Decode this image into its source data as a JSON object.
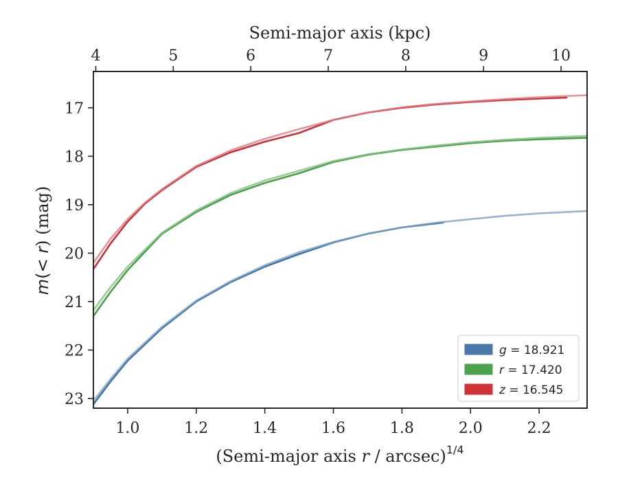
{
  "chart_data": {
    "type": "line",
    "title": "",
    "xlabel_prefix": "(Semi-major axis ",
    "xlabel_var": "r",
    "xlabel_suffix": " / arcsec)",
    "xlabel_power": "1/4",
    "ylabel_var": "m",
    "ylabel_mid": "(< ",
    "ylabel_var2": "r",
    "ylabel_suffix": ") (mag)",
    "top_xlabel": "Semi-major axis (kpc)",
    "xlim": [
      0.9,
      2.34
    ],
    "ylim": [
      23.2,
      16.25
    ],
    "y_inverted": true,
    "xticks": [
      1.0,
      1.2,
      1.4,
      1.6,
      1.8,
      2.0,
      2.2
    ],
    "xtick_labels": [
      "1.0",
      "1.2",
      "1.4",
      "1.6",
      "1.8",
      "2.0",
      "2.2"
    ],
    "yticks": [
      17,
      18,
      19,
      20,
      21,
      22,
      23
    ],
    "ytick_labels": [
      "17",
      "18",
      "19",
      "20",
      "21",
      "22",
      "23"
    ],
    "top_xticks": [
      4,
      5,
      6,
      7,
      8,
      9,
      10
    ],
    "top_xtick_labels": [
      "4",
      "5",
      "6",
      "7",
      "8",
      "9",
      "10"
    ],
    "top_xtick_positions_in_bottom_units": [
      0.907,
      1.133,
      1.359,
      1.585,
      1.811,
      2.038,
      2.264
    ],
    "grid": false,
    "legend_position": "lower-right",
    "legend": [
      {
        "var": "g",
        "text": " = 18.921",
        "color": "#4a78a8"
      },
      {
        "var": "r",
        "text": " = 17.420",
        "color": "#4ea24e"
      },
      {
        "var": "z",
        "text": " = 16.545",
        "color": "#d03238"
      }
    ],
    "series": [
      {
        "name": "g",
        "color": "#3f72a6",
        "opacity": 1.0,
        "x": [
          0.9,
          0.95,
          1.0,
          1.1,
          1.2,
          1.3,
          1.4,
          1.5,
          1.6,
          1.7,
          1.8,
          1.92
        ],
        "y": [
          23.12,
          22.65,
          22.22,
          21.55,
          21.0,
          20.6,
          20.28,
          20.02,
          19.78,
          19.6,
          19.47,
          19.37
        ]
      },
      {
        "name": "g-extended",
        "color": "#7aa0c4",
        "opacity": 0.8,
        "x": [
          0.9,
          0.95,
          1.0,
          1.1,
          1.2,
          1.3,
          1.4,
          1.5,
          1.6,
          1.7,
          1.8,
          1.9,
          2.0,
          2.1,
          2.2,
          2.34
        ],
        "y": [
          23.05,
          22.6,
          22.18,
          21.52,
          20.98,
          20.58,
          20.25,
          19.98,
          19.77,
          19.6,
          19.47,
          19.37,
          19.3,
          19.23,
          19.18,
          19.13
        ]
      },
      {
        "name": "r",
        "color": "#4a9e4a",
        "opacity": 1.0,
        "x": [
          0.9,
          0.95,
          1.0,
          1.1,
          1.2,
          1.3,
          1.4,
          1.5,
          1.6,
          1.7,
          1.8,
          1.9,
          2.0,
          2.1,
          2.2,
          2.34
        ],
        "y": [
          21.3,
          20.8,
          20.35,
          19.6,
          19.15,
          18.8,
          18.55,
          18.35,
          18.12,
          17.97,
          17.87,
          17.8,
          17.73,
          17.68,
          17.65,
          17.62
        ]
      },
      {
        "name": "r-extended",
        "color": "#7cc07c",
        "opacity": 0.8,
        "x": [
          0.9,
          0.95,
          1.0,
          1.1,
          1.2,
          1.3,
          1.4,
          1.5,
          1.6,
          1.7,
          1.8,
          1.9,
          2.0,
          2.1,
          2.2,
          2.34
        ],
        "y": [
          21.18,
          20.7,
          20.28,
          19.58,
          19.12,
          18.76,
          18.5,
          18.3,
          18.1,
          17.96,
          17.86,
          17.78,
          17.71,
          17.66,
          17.62,
          17.58
        ]
      },
      {
        "name": "z",
        "color": "#cc3036",
        "opacity": 1.0,
        "x": [
          0.9,
          0.95,
          1.0,
          1.05,
          1.1,
          1.2,
          1.3,
          1.4,
          1.5,
          1.6,
          1.7,
          1.8,
          1.9,
          2.0,
          2.1,
          2.2,
          2.28
        ],
        "y": [
          20.33,
          19.8,
          19.35,
          18.98,
          18.7,
          18.22,
          17.92,
          17.7,
          17.52,
          17.25,
          17.1,
          17.0,
          16.93,
          16.88,
          16.84,
          16.81,
          16.79
        ]
      },
      {
        "name": "z-extended",
        "color": "#e07880",
        "opacity": 0.8,
        "x": [
          0.9,
          0.95,
          1.0,
          1.05,
          1.1,
          1.2,
          1.3,
          1.4,
          1.5,
          1.6,
          1.7,
          1.8,
          1.9,
          2.0,
          2.1,
          2.2,
          2.34
        ],
        "y": [
          20.2,
          19.7,
          19.3,
          18.96,
          18.68,
          18.2,
          17.88,
          17.64,
          17.44,
          17.25,
          17.1,
          16.99,
          16.92,
          16.87,
          16.82,
          16.78,
          16.74
        ]
      }
    ]
  }
}
